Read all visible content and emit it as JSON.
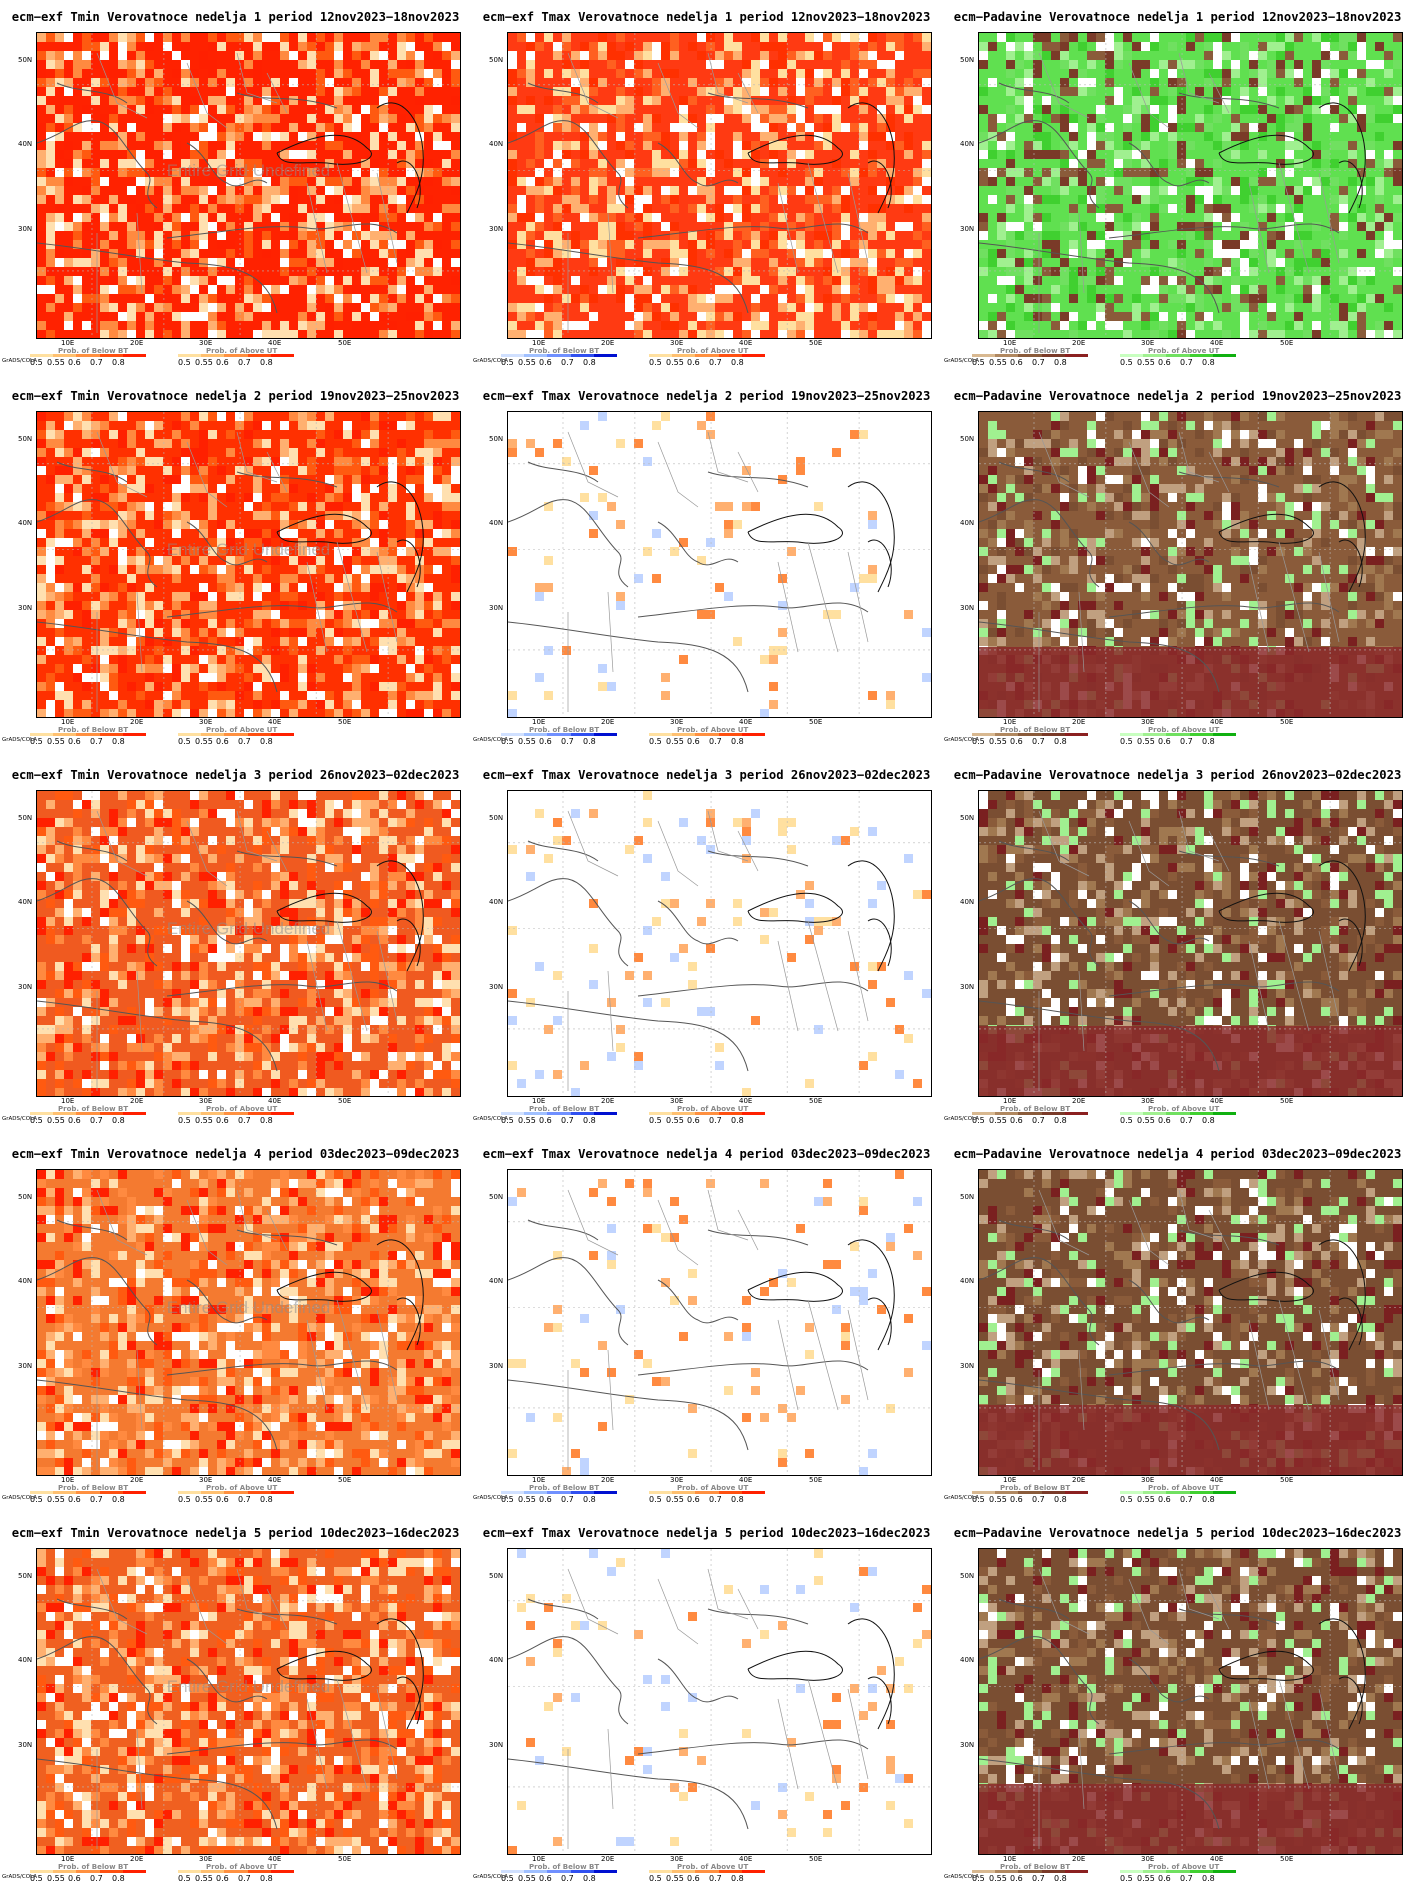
{
  "panels": [
    {
      "title": "ecm−exf Tmin Verovatnoce nedelja 1 period 12nov2023−18nov2023",
      "type": "tmin",
      "undefined_note": "Entire Grid Undefined",
      "base": "#ff2200",
      "leg1": "Prob. of Below BT",
      "leg2": "Prob. of Above UT"
    },
    {
      "title": "ecm−exf Tmax Verovatnoce nedelja 1 period 12nov2023−18nov2023",
      "type": "tmax",
      "undefined_note": "",
      "base": "#ff3a12",
      "leg1": "Prob. of Below BT",
      "leg2": "Prob. of Above UT"
    },
    {
      "title": "ecm−Padavine Verovatnoce nedelja 1 period 12nov2023−18nov2023",
      "type": "prec",
      "undefined_note": "",
      "base": "#60e050",
      "leg1": "Prob. of Below BT",
      "leg2": "Prob. of Above UT"
    },
    {
      "title": "ecm−exf Tmin Verovatnoce nedelja 2 period 19nov2023−25nov2023",
      "type": "tmin",
      "undefined_note": "Entire Grid Undefined",
      "base": "#ff3000",
      "leg1": "Prob. of Below BT",
      "leg2": "Prob. of Above UT"
    },
    {
      "title": "ecm−exf Tmax Verovatnoce nedelja 2 period 19nov2023−25nov2023",
      "type": "tmax",
      "undefined_note": "",
      "base": "#ffffff",
      "leg1": "Prob. of Below BT",
      "leg2": "Prob. of Above UT"
    },
    {
      "title": "ecm−Padavine Verovatnoce nedelja 2 period 19nov2023−25nov2023",
      "type": "prec",
      "undefined_note": "",
      "base": "#8a5b3a",
      "leg1": "Prob. of Below BT",
      "leg2": "Prob. of Above UT"
    },
    {
      "title": "ecm−exf Tmin Verovatnoce nedelja 3 period 26nov2023−02dec2023",
      "type": "tmin",
      "undefined_note": "Entire Grid Undefined",
      "base": "#f05a20",
      "leg1": "Prob. of Below BT",
      "leg2": "Prob. of Above UT"
    },
    {
      "title": "ecm−exf Tmax Verovatnoce nedelja 3 period 26nov2023−02dec2023",
      "type": "tmax",
      "undefined_note": "",
      "base": "#ffffff",
      "leg1": "Prob. of Below BT",
      "leg2": "Prob. of Above UT"
    },
    {
      "title": "ecm−Padavine Verovatnoce nedelja 3 period 26nov2023−02dec2023",
      "type": "prec",
      "undefined_note": "",
      "base": "#7a4e32",
      "leg1": "Prob. of Below BT",
      "leg2": "Prob. of Above UT"
    },
    {
      "title": "ecm−exf Tmin Verovatnoce nedelja 4 period 03dec2023−09dec2023",
      "type": "tmin",
      "undefined_note": "Entire Grid Undefined",
      "base": "#f47a30",
      "leg1": "Prob. of Below BT",
      "leg2": "Prob. of Above UT"
    },
    {
      "title": "ecm−exf Tmax Verovatnoce nedelja 4 period 03dec2023−09dec2023",
      "type": "tmax",
      "undefined_note": "",
      "base": "#ffffff",
      "leg1": "Prob. of Below BT",
      "leg2": "Prob. of Above UT"
    },
    {
      "title": "ecm−Padavine Verovatnoce nedelja 4 period 03dec2023−09dec2023",
      "type": "prec",
      "undefined_note": "",
      "base": "#7a4e32",
      "leg1": "Prob. of Below BT",
      "leg2": "Prob. of Above UT"
    },
    {
      "title": "ecm−exf Tmin Verovatnoce nedelja 5 period 10dec2023−16dec2023",
      "type": "tmin",
      "undefined_note": "Entire Grid Undefined",
      "base": "#f06020",
      "leg1": "Prob. of Below BT",
      "leg2": "Prob. of Above UT"
    },
    {
      "title": "ecm−exf Tmax Verovatnoce nedelja 5 period 10dec2023−16dec2023",
      "type": "tmax",
      "undefined_note": "",
      "base": "#ffffff",
      "leg1": "Prob. of Below BT",
      "leg2": "Prob. of Above UT"
    },
    {
      "title": "ecm−Padavine Verovatnoce nedelja 5 period 10dec2023−16dec2023",
      "type": "prec",
      "undefined_note": "",
      "base": "#7a4e32",
      "leg1": "Prob. of Below BT",
      "leg2": "Prob. of Above UT"
    }
  ],
  "lat_labels": [
    "50N",
    "40N",
    "30N"
  ],
  "lon_labels": [
    "10E",
    "20E",
    "30E",
    "40E",
    "50E"
  ],
  "legend_ticks": [
    "0.5",
    "0.55",
    "0.6",
    "0.7",
    "0.8"
  ],
  "grads_label": "GrADS/COLA",
  "colorbars": {
    "warm": [
      "#ffe0a0",
      "#ffc070",
      "#ff9040",
      "#ff5010",
      "#ff2000"
    ],
    "cold": [
      "#d0e0ff",
      "#a0c0ff",
      "#7090ff",
      "#3050f0",
      "#0010d0"
    ],
    "dry": [
      "#d8b890",
      "#b08860",
      "#8a5b3a",
      "#7a3a28",
      "#8b2020"
    ],
    "wet": [
      "#c8ffc0",
      "#a0f090",
      "#70e060",
      "#40d030",
      "#10b010"
    ]
  }
}
